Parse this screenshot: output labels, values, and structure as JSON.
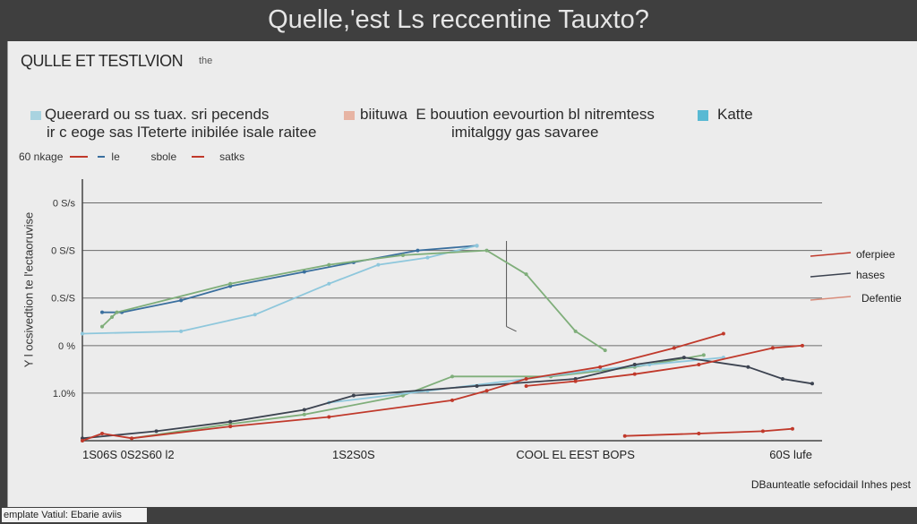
{
  "title": "Quelle,'est Ls reccentine Tauxto?",
  "subtitle": "QULLE ET TESTLVION",
  "subtitle_small": "the",
  "legend": {
    "left_line1": "Queerard ou ss tuax. sri pecends",
    "left_line2": "ir c eoge sas lTeterte inibilée isale raitee",
    "mid_line1": "biituwa",
    "mid_line1b": "E bouution eevourtion bl nitremtess",
    "mid_line2": "imitalggy gas savaree",
    "right_label": "Katte"
  },
  "keys": {
    "k0": "60 nkage",
    "k1": "le",
    "k2": "sbole",
    "k3": "satks"
  },
  "y_axis_title": "Y l ocsivedtion te l'ectaoruvise",
  "right_labels": [
    "oferpiee",
    "hases",
    "Defentie"
  ],
  "note": "DBaunteatle  sefocidail Inhes pest",
  "footer_label": "emplate Vatiul: Ebarie aviis",
  "colors": {
    "blue": "#3a6f9e",
    "light_blue": "#8ec7dc",
    "green": "#7fae7a",
    "red": "#c0392b",
    "dark": "#3c4350",
    "salmon": "#d98c7a"
  },
  "chart_data": {
    "type": "line",
    "title": "Quelle,'est Ls reccentine Tauxto?",
    "ylabel": "Y l ocsivedtion te l'ectaoruvise",
    "xlabel": "",
    "x_ticks": [
      "1S06S  0S2S60 l2",
      "1S2S0S",
      "COOL EL EEST BOPS",
      "60S lufe"
    ],
    "x_tick_pos": [
      0.0,
      0.55,
      1.0,
      1.48
    ],
    "y_ticks": [
      "1.0%",
      "0 %",
      "0.S/S",
      "0 S/S",
      "0 S/s"
    ],
    "y_tick_vals": [
      1,
      2,
      3,
      4,
      5
    ],
    "xlim": [
      0,
      1.5
    ],
    "ylim": [
      0,
      5.5
    ],
    "grid": true,
    "series": [
      {
        "color_key": "blue",
        "x": [
          0.04,
          0.08,
          0.2,
          0.3,
          0.45,
          0.55,
          0.68,
          0.8
        ],
        "y": [
          2.7,
          2.7,
          2.95,
          3.25,
          3.55,
          3.75,
          4.0,
          4.1
        ]
      },
      {
        "color_key": "light_blue",
        "x": [
          0.0,
          0.2,
          0.35,
          0.5,
          0.6,
          0.7,
          0.8
        ],
        "y": [
          2.25,
          2.3,
          2.65,
          3.3,
          3.7,
          3.85,
          4.1
        ]
      },
      {
        "color_key": "green",
        "x": [
          0.04,
          0.06,
          0.07,
          0.3,
          0.5,
          0.65,
          0.82,
          0.9,
          1.0,
          1.06
        ],
        "y": [
          2.4,
          2.6,
          2.7,
          3.3,
          3.7,
          3.9,
          4.0,
          3.5,
          2.3,
          1.9
        ]
      },
      {
        "color_key": "green",
        "x": [
          0.1,
          0.3,
          0.45,
          0.65,
          0.75,
          0.95,
          1.12,
          1.26
        ],
        "y": [
          0.05,
          0.35,
          0.55,
          0.95,
          1.35,
          1.35,
          1.55,
          1.8
        ]
      },
      {
        "color_key": "light_blue",
        "x": [
          0.5,
          0.7,
          0.9,
          1.05,
          1.15,
          1.3
        ],
        "y": [
          0.8,
          1.05,
          1.3,
          1.5,
          1.6,
          1.75
        ]
      },
      {
        "color_key": "dark",
        "x": [
          0.0,
          0.15,
          0.3,
          0.45,
          0.55,
          0.8,
          1.0,
          1.12,
          1.22,
          1.35,
          1.42,
          1.48
        ],
        "y": [
          0.05,
          0.2,
          0.4,
          0.65,
          0.95,
          1.15,
          1.3,
          1.6,
          1.75,
          1.55,
          1.3,
          1.2
        ]
      },
      {
        "color_key": "red",
        "x": [
          0.0,
          0.04,
          0.1,
          0.3,
          0.5,
          0.75,
          0.82,
          0.9,
          1.05,
          1.2,
          1.3
        ],
        "y": [
          0.0,
          0.15,
          0.05,
          0.3,
          0.5,
          0.85,
          1.05,
          1.3,
          1.55,
          1.95,
          2.25
        ]
      },
      {
        "color_key": "red",
        "x": [
          0.9,
          1.0,
          1.12,
          1.25,
          1.4,
          1.46
        ],
        "y": [
          1.15,
          1.25,
          1.4,
          1.6,
          1.95,
          2.0
        ]
      },
      {
        "color_key": "red",
        "x": [
          1.1,
          1.25,
          1.38,
          1.44
        ],
        "y": [
          0.1,
          0.15,
          0.2,
          0.25
        ]
      }
    ]
  }
}
